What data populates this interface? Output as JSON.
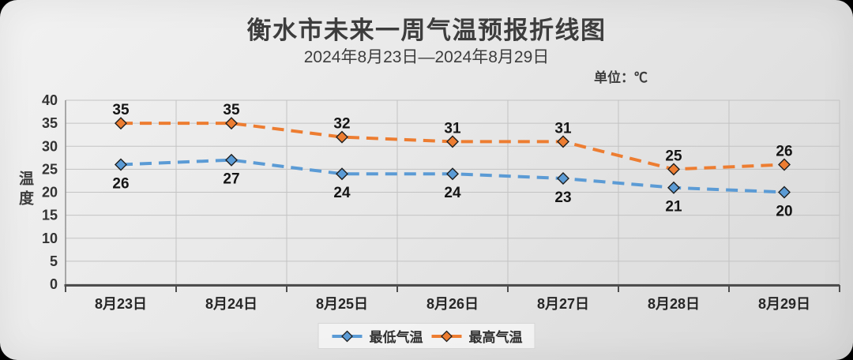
{
  "page": {
    "title": "衡水市未来一周气温预报折线图",
    "subtitle": "2024年8月23日—2024年8月29日",
    "unit_label": "单位：℃",
    "y_axis_title": "温度"
  },
  "colors": {
    "min_series": "#5B9BD5",
    "max_series": "#ED7D31",
    "marker_outline": "#1f1f1f",
    "grid": "#c3c3c3",
    "axis": "#4d4d4d",
    "axis_line_left": "#8a8a8a",
    "data_label_text": "#141414",
    "tick_label_text": "#333333"
  },
  "chart_data": {
    "type": "line",
    "title": "衡水市未来一周气温预报折线图",
    "subtitle": "2024年8月23日—2024年8月29日",
    "unit": "℃",
    "xlabel": "",
    "ylabel": "温度",
    "categories": [
      "8月23日",
      "8月24日",
      "8月25日",
      "8月26日",
      "8月27日",
      "8月28日",
      "8月29日"
    ],
    "series": [
      {
        "name": "最低气温",
        "color": "#5B9BD5",
        "values": [
          26,
          27,
          24,
          24,
          23,
          21,
          20
        ],
        "label_position": "below"
      },
      {
        "name": "最高气温",
        "color": "#ED7D31",
        "values": [
          35,
          35,
          32,
          31,
          31,
          25,
          26
        ],
        "label_position": "above"
      }
    ],
    "ylim": [
      0,
      40
    ],
    "yticks": [
      0,
      5,
      10,
      15,
      20,
      25,
      30,
      35,
      40
    ],
    "grid": true,
    "line_style": "dashed",
    "marker": "diamond",
    "legend_position": "bottom"
  }
}
